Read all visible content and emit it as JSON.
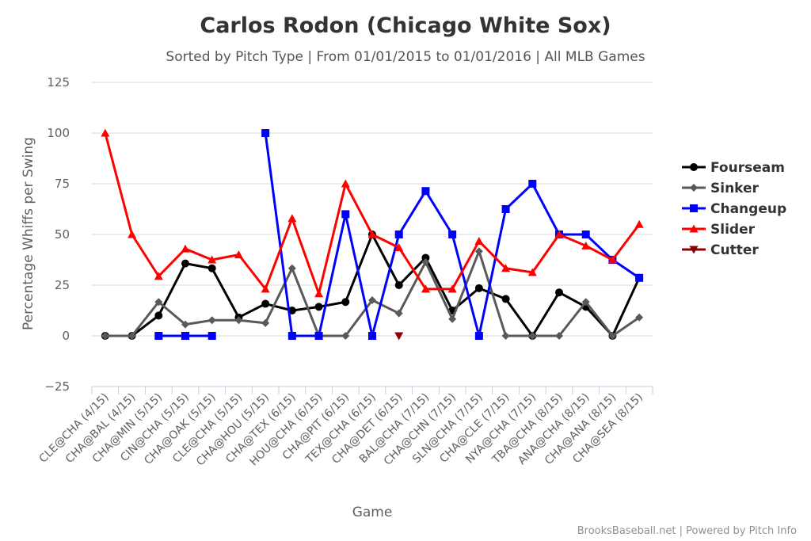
{
  "chart_data": {
    "type": "line",
    "title": "Carlos Rodon (Chicago White Sox)",
    "subtitle": "Sorted by Pitch Type | From 01/01/2015 to 01/01/2016 | All MLB Games",
    "xlabel": "Game",
    "ylabel": "Percentage Whiffs per Swing",
    "ylim": [
      -25,
      125
    ],
    "yticks": [
      -25,
      0,
      25,
      50,
      75,
      100,
      125
    ],
    "grid": true,
    "legend_position": "right",
    "credits": "BrooksBaseball.net | Powered by Pitch Info",
    "categories": [
      "CLE@CHA (4/15)",
      "CHA@BAL (4/15)",
      "CHA@MIN (5/15)",
      "CIN@CHA (5/15)",
      "CHA@OAK (5/15)",
      "CLE@CHA (5/15)",
      "CHA@HOU (5/15)",
      "CHA@TEX (6/15)",
      "HOU@CHA (6/15)",
      "CHA@PIT (6/15)",
      "TEX@CHA (6/15)",
      "CHA@DET (6/15)",
      "BAL@CHA (7/15)",
      "CHA@CHN (7/15)",
      "SLN@CHA (7/15)",
      "CHA@CLE (7/15)",
      "NYA@CHA (7/15)",
      "TBA@CHA (8/15)",
      "ANA@CHA (8/15)",
      "CHA@ANA (8/15)",
      "CHA@SEA (8/15)"
    ],
    "series": [
      {
        "name": "Fourseam",
        "color": "#000000",
        "marker": "circle",
        "values": [
          0,
          0,
          10,
          35.7,
          33.3,
          9.1,
          15.8,
          12.5,
          14.3,
          16.7,
          50,
          25,
          38.5,
          12.5,
          23.5,
          18.2,
          0,
          21.4,
          14.3,
          0,
          28.6
        ]
      },
      {
        "name": "Sinker",
        "color": "#595959",
        "marker": "diamond",
        "values": [
          0,
          0,
          16.7,
          5.6,
          7.7,
          7.7,
          6.3,
          33.3,
          0,
          0,
          17.6,
          11.1,
          36.4,
          8.3,
          41.7,
          0,
          0,
          0,
          16.7,
          0,
          9.1
        ]
      },
      {
        "name": "Changeup",
        "color": "#0000ff",
        "marker": "square",
        "values": [
          null,
          null,
          0,
          0,
          0,
          null,
          100,
          0,
          0,
          60,
          0,
          50,
          71.4,
          50,
          0,
          62.5,
          75,
          50,
          50,
          37.5,
          28.6
        ]
      },
      {
        "name": "Slider",
        "color": "#ff0000",
        "marker": "triangle",
        "values": [
          100,
          50,
          29.4,
          42.9,
          37.5,
          40,
          23.1,
          57.9,
          20.8,
          75,
          50,
          43.5,
          23.1,
          23.1,
          46.7,
          33.3,
          31.3,
          50,
          44.4,
          37.5,
          55
        ]
      },
      {
        "name": "Cutter",
        "color": "#8b0000",
        "marker": "triangle-down",
        "values": [
          null,
          null,
          null,
          null,
          null,
          null,
          null,
          null,
          null,
          null,
          null,
          0,
          null,
          null,
          null,
          null,
          null,
          null,
          null,
          null,
          null
        ]
      }
    ]
  }
}
